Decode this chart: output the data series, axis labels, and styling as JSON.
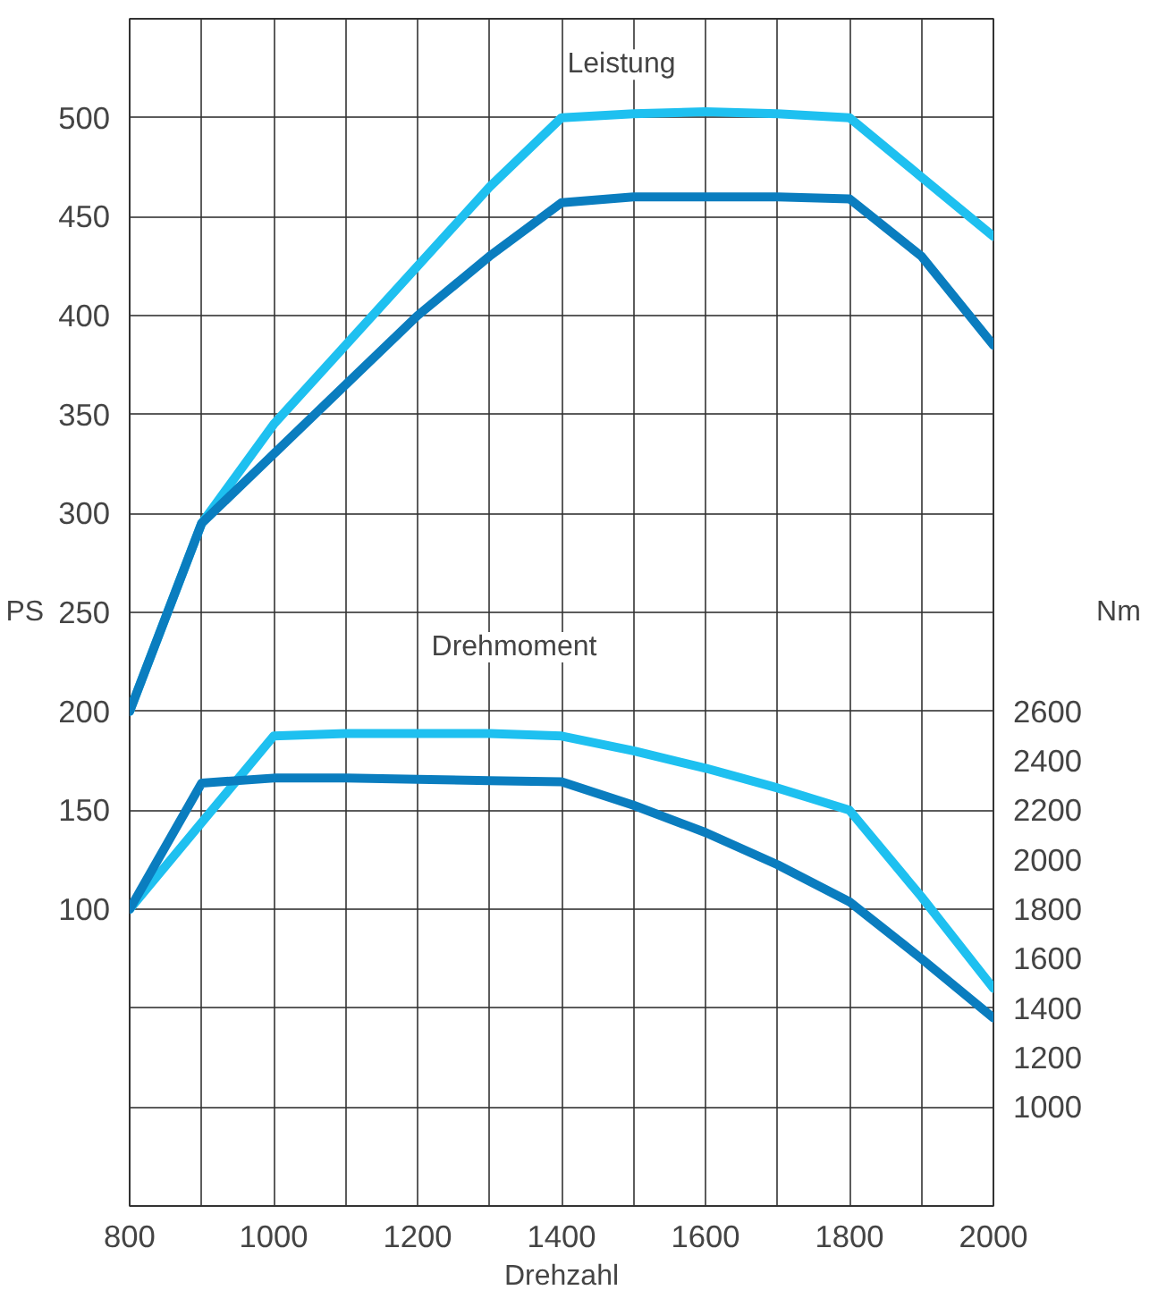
{
  "chart_data": {
    "type": "line",
    "xlabel": "Drehzahl",
    "ylabel": "PS",
    "y2label": "Nm",
    "x": [
      800,
      900,
      1000,
      1100,
      1200,
      1300,
      1400,
      1500,
      1600,
      1700,
      1800,
      1900,
      2000
    ],
    "series": [
      {
        "color": "#1ec0f0",
        "values": [
          200,
          295,
          345,
          385,
          425,
          465,
          500,
          502,
          503,
          502,
          500,
          470,
          440
        ]
      },
      {
        "color": "#0a7dbf",
        "values": [
          200,
          295,
          330,
          365,
          400,
          430,
          457,
          460,
          460,
          460,
          459,
          430,
          385
        ]
      },
      {
        "color": "#1ec0f0",
        "axis": "y2",
        "values": [
          1800,
          2150,
          2500,
          2510,
          2510,
          2510,
          2500,
          2440,
          2370,
          2290,
          2200,
          1850,
          1480
        ]
      },
      {
        "color": "#0a7dbf",
        "axis": "y2",
        "values": [
          1800,
          2310,
          2330,
          2330,
          2325,
          2320,
          2315,
          2220,
          2110,
          1980,
          1830,
          1600,
          1360
        ]
      }
    ],
    "xlim": [
      800,
      2000
    ],
    "xticks": [
      800,
      {
        "value": 900,
        "label": null
      },
      1000,
      {
        "value": 1100,
        "label": null
      },
      1200,
      {
        "value": 1300,
        "label": null
      },
      1400,
      {
        "value": 1500,
        "label": null
      },
      1600,
      {
        "value": 1700,
        "label": null
      },
      1800,
      {
        "value": 1900,
        "label": null
      },
      2000
    ],
    "ylim": [
      -50,
      550
    ],
    "yticks": [
      {
        "value": -50,
        "label": null
      },
      {
        "value": 0,
        "label": null
      },
      {
        "value": 50,
        "label": null
      },
      100,
      150,
      200,
      250,
      300,
      350,
      400,
      450,
      500,
      {
        "value": 550,
        "label": null
      }
    ],
    "y2lim": [
      600,
      5400
    ],
    "y2ticks": [
      1000,
      1200,
      1400,
      1600,
      1800,
      2000,
      2200,
      2400,
      2600
    ],
    "grid": true,
    "line_style": "solid",
    "annotations": [
      "Leistung",
      "Drehmoment"
    ]
  }
}
